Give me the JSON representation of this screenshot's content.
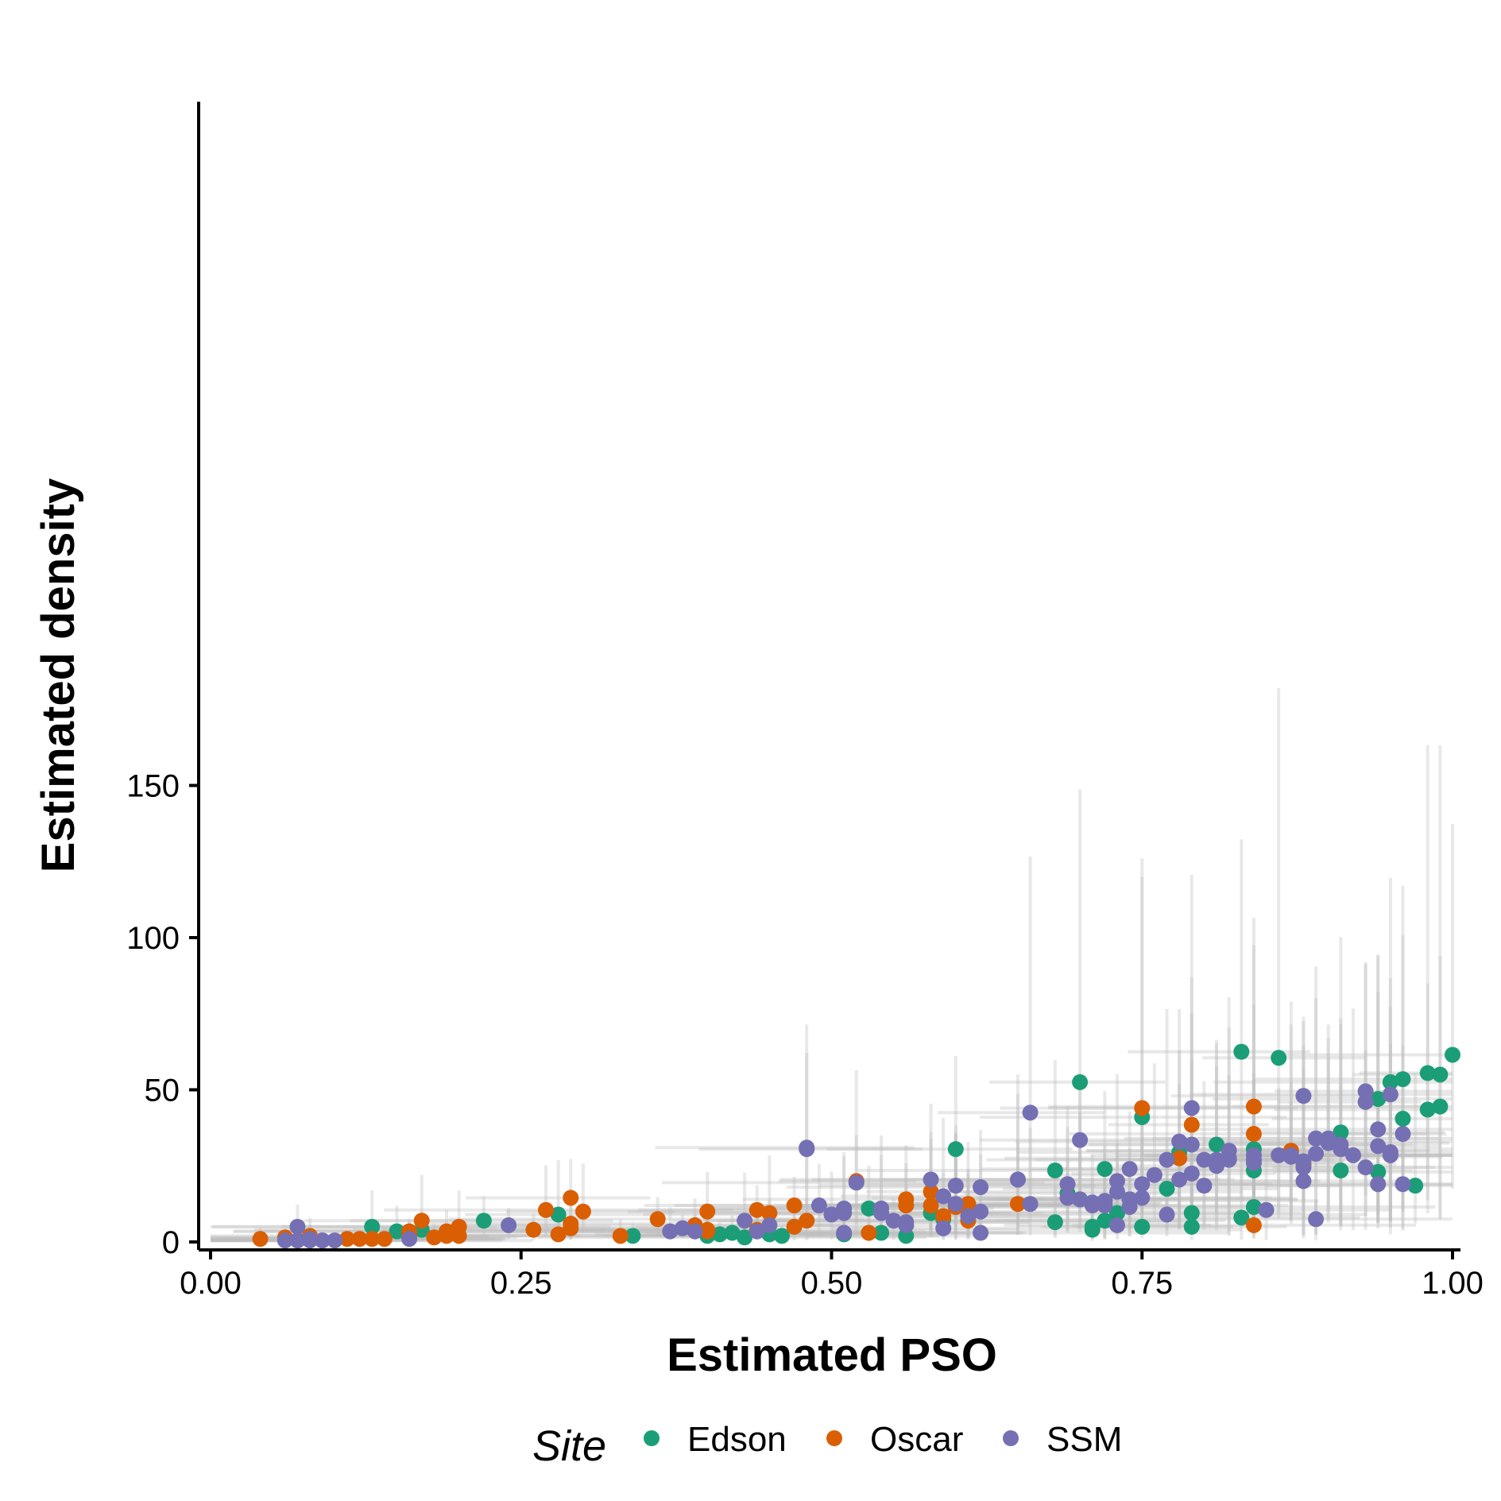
{
  "chart_data": {
    "type": "scatter",
    "title": "",
    "xlabel": "Estimated PSO",
    "ylabel": "Estimated density",
    "xlim": [
      0,
      1
    ],
    "ylim": [
      0,
      185
    ],
    "x_ticks": [
      "0.00",
      "0.25",
      "0.50",
      "0.75",
      "1.00"
    ],
    "y_ticks": [
      "0",
      "50",
      "100",
      "150"
    ],
    "grid": false,
    "legend": {
      "title": "Site",
      "position": "bottom"
    },
    "error_bar_color": "#bdbdbd",
    "series": [
      {
        "name": "Edson",
        "color": "#1b9e77",
        "x": [
          0.13,
          0.15,
          0.17,
          0.22,
          0.28,
          0.34,
          0.4,
          0.41,
          0.42,
          0.43,
          0.45,
          0.46,
          0.51,
          0.53,
          0.54,
          0.56,
          0.58,
          0.59,
          0.6,
          0.6,
          0.65,
          0.68,
          0.68,
          0.69,
          0.7,
          0.71,
          0.71,
          0.72,
          0.72,
          0.73,
          0.74,
          0.75,
          0.75,
          0.77,
          0.78,
          0.79,
          0.79,
          0.81,
          0.83,
          0.83,
          0.84,
          0.84,
          0.84,
          0.86,
          0.91,
          0.91,
          0.94,
          0.94,
          0.95,
          0.96,
          0.96,
          0.97,
          0.98,
          0.98,
          0.99,
          0.99,
          1.0
        ],
        "y": [
          5,
          3.5,
          4,
          7,
          9,
          2,
          2,
          2.5,
          3,
          1.5,
          2.5,
          2,
          2.5,
          11,
          3,
          2,
          9.5,
          7.5,
          12,
          30.5,
          20.5,
          23.5,
          6.5,
          16,
          52.5,
          4,
          5,
          7,
          24,
          9.5,
          14,
          5,
          41,
          17.5,
          29.5,
          5,
          9.5,
          32,
          8,
          62.5,
          30.5,
          11.5,
          23.5,
          60.5,
          23.5,
          36,
          23,
          47,
          52.5,
          40.5,
          53.5,
          18.5,
          43.5,
          55.5,
          44.5,
          55,
          61.5
        ]
      },
      {
        "name": "Oscar",
        "color": "#d95f02",
        "x": [
          0.04,
          0.06,
          0.08,
          0.08,
          0.11,
          0.12,
          0.13,
          0.14,
          0.16,
          0.16,
          0.17,
          0.18,
          0.19,
          0.19,
          0.2,
          0.2,
          0.26,
          0.27,
          0.28,
          0.29,
          0.29,
          0.29,
          0.3,
          0.33,
          0.36,
          0.39,
          0.4,
          0.4,
          0.4,
          0.44,
          0.44,
          0.45,
          0.47,
          0.47,
          0.48,
          0.52,
          0.53,
          0.56,
          0.56,
          0.58,
          0.58,
          0.59,
          0.6,
          0.61,
          0.61,
          0.61,
          0.65,
          0.75,
          0.78,
          0.79,
          0.84,
          0.84,
          0.84,
          0.87,
          0.88
        ],
        "y": [
          1,
          1.5,
          1.5,
          2,
          1,
          1,
          1,
          1,
          3.5,
          2,
          7,
          1.5,
          2,
          3.5,
          2,
          5,
          4,
          10.5,
          2.5,
          6,
          14.5,
          4.5,
          10,
          2,
          7.5,
          5.5,
          3.5,
          10,
          4,
          4,
          10.5,
          9.5,
          5,
          12,
          7,
          20,
          3,
          14,
          12,
          12,
          16.5,
          8.5,
          11.5,
          12,
          7,
          12.5,
          12.5,
          44,
          27.5,
          38.5,
          5.5,
          44.5,
          35.5,
          30,
          25.5
        ]
      },
      {
        "name": "SSM",
        "color": "#7570b3",
        "x": [
          0.06,
          0.07,
          0.07,
          0.07,
          0.08,
          0.08,
          0.09,
          0.09,
          0.1,
          0.16,
          0.24,
          0.37,
          0.38,
          0.39,
          0.43,
          0.44,
          0.45,
          0.48,
          0.48,
          0.49,
          0.5,
          0.51,
          0.51,
          0.51,
          0.52,
          0.54,
          0.54,
          0.55,
          0.56,
          0.56,
          0.58,
          0.59,
          0.59,
          0.6,
          0.6,
          0.61,
          0.62,
          0.62,
          0.62,
          0.65,
          0.66,
          0.66,
          0.69,
          0.69,
          0.7,
          0.7,
          0.7,
          0.71,
          0.71,
          0.72,
          0.72,
          0.73,
          0.73,
          0.73,
          0.74,
          0.74,
          0.74,
          0.75,
          0.75,
          0.76,
          0.77,
          0.77,
          0.78,
          0.78,
          0.79,
          0.79,
          0.79,
          0.8,
          0.8,
          0.81,
          0.81,
          0.82,
          0.82,
          0.82,
          0.84,
          0.84,
          0.84,
          0.85,
          0.86,
          0.87,
          0.87,
          0.87,
          0.88,
          0.88,
          0.88,
          0.88,
          0.89,
          0.89,
          0.89,
          0.9,
          0.9,
          0.9,
          0.91,
          0.91,
          0.92,
          0.93,
          0.93,
          0.93,
          0.94,
          0.94,
          0.94,
          0.95,
          0.95,
          0.95,
          0.95,
          0.96,
          0.96
        ],
        "y": [
          0.5,
          0.5,
          5,
          0.5,
          1,
          0.5,
          0.5,
          0.5,
          0.5,
          1,
          5.5,
          3.5,
          4.5,
          3.5,
          7,
          3.5,
          5.5,
          30.5,
          31,
          12,
          9,
          9.5,
          11,
          3,
          19.5,
          9.5,
          11,
          7,
          5.5,
          6.5,
          20.5,
          15,
          4.5,
          18.5,
          12.5,
          8.5,
          3,
          10,
          18,
          20.5,
          42.5,
          12.5,
          14.5,
          19,
          14,
          33.5,
          14,
          13,
          12,
          12,
          13.5,
          5.5,
          16.5,
          20,
          14,
          24,
          11.5,
          19,
          14.5,
          22,
          27,
          9,
          33,
          20.5,
          44,
          32,
          22.5,
          27,
          18.5,
          25,
          27,
          27,
          30,
          27.5,
          27,
          28.5,
          26,
          10.5,
          28.5,
          28.5,
          28,
          28.5,
          20,
          48,
          26.5,
          24.5,
          34,
          29,
          7.5,
          32.5,
          33,
          34,
          32,
          30.5,
          28.5,
          24.5,
          49.5,
          46,
          19,
          31.5,
          37,
          28.5,
          29.5,
          48.5,
          28.5,
          19,
          35.5
        ]
      }
    ]
  }
}
